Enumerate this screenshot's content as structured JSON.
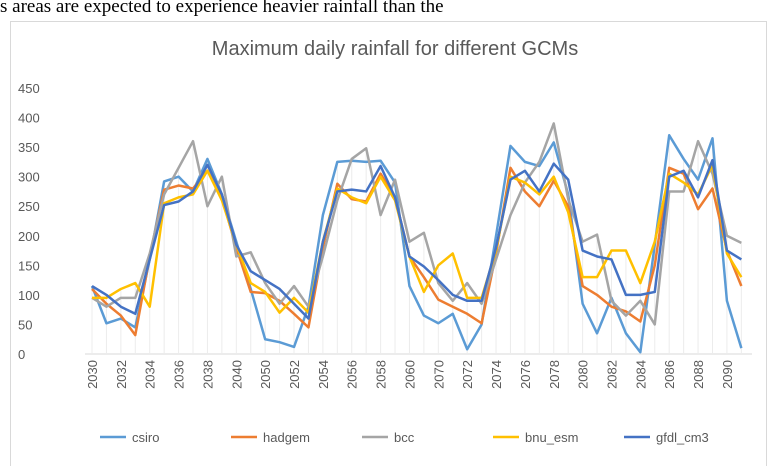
{
  "page_text": "s areas are expected to experience heavier rainfall than the",
  "chart_data": {
    "type": "line",
    "title": "Maximum daily rainfall for different GCMs",
    "categories": [
      "2030",
      null,
      "2032",
      null,
      "2034",
      null,
      "2036",
      null,
      "2038",
      null,
      "2040",
      null,
      "2050",
      null,
      "2052",
      null,
      "2054",
      null,
      "2056",
      null,
      "2058",
      null,
      "2060",
      null,
      "2070",
      null,
      "2072",
      null,
      "2074",
      null,
      "2076",
      null,
      "2078",
      null,
      "2080",
      null,
      "2082",
      null,
      "2084",
      null,
      "2086",
      null,
      "2088",
      null,
      "2090",
      null
    ],
    "ylim": [
      0,
      450
    ],
    "yticks": [
      0,
      50,
      100,
      150,
      200,
      250,
      300,
      350,
      400,
      450
    ],
    "grid": false,
    "legend": "bottom",
    "series": [
      {
        "name": "csiro",
        "color": "#5b9bd5",
        "values": [
          115,
          52,
          60,
          45,
          160,
          292,
          300,
          275,
          330,
          270,
          190,
          110,
          25,
          20,
          12,
          80,
          235,
          325,
          327,
          325,
          327,
          290,
          115,
          65,
          52,
          68,
          8,
          50,
          200,
          352,
          325,
          318,
          358,
          270,
          85,
          35,
          95,
          35,
          3,
          185,
          370,
          330,
          295,
          365,
          90,
          10
        ]
      },
      {
        "name": "hadgem",
        "color": "#ed7d31",
        "values": [
          110,
          85,
          65,
          32,
          165,
          278,
          285,
          280,
          310,
          265,
          180,
          105,
          103,
          90,
          68,
          45,
          180,
          288,
          262,
          258,
          305,
          265,
          165,
          130,
          92,
          80,
          68,
          52,
          170,
          315,
          275,
          250,
          293,
          250,
          115,
          100,
          80,
          72,
          55,
          150,
          315,
          305,
          245,
          280,
          175,
          115
        ]
      },
      {
        "name": "bcc",
        "color": "#a5a5a5",
        "values": [
          95,
          80,
          95,
          95,
          170,
          270,
          315,
          360,
          250,
          300,
          165,
          172,
          120,
          85,
          115,
          80,
          165,
          260,
          330,
          348,
          235,
          295,
          190,
          205,
          120,
          90,
          120,
          85,
          160,
          235,
          290,
          325,
          390,
          262,
          190,
          202,
          90,
          65,
          90,
          50,
          275,
          275,
          360,
          305,
          200,
          188
        ]
      },
      {
        "name": "bnu_esm",
        "color": "#ffc000",
        "values": [
          95,
          95,
          110,
          120,
          80,
          255,
          265,
          270,
          310,
          260,
          185,
          120,
          105,
          70,
          95,
          70,
          190,
          280,
          265,
          255,
          300,
          260,
          165,
          105,
          150,
          170,
          95,
          95,
          175,
          300,
          290,
          270,
          300,
          240,
          130,
          130,
          175,
          175,
          120,
          190,
          305,
          290,
          270,
          320,
          170,
          130
        ]
      },
      {
        "name": "gfdl_cm3",
        "color": "#4472c4",
        "values": [
          115,
          100,
          80,
          68,
          160,
          252,
          258,
          275,
          320,
          270,
          185,
          140,
          125,
          110,
          85,
          60,
          190,
          275,
          278,
          275,
          318,
          265,
          165,
          148,
          125,
          100,
          90,
          90,
          180,
          295,
          310,
          275,
          322,
          295,
          175,
          165,
          160,
          100,
          100,
          105,
          300,
          310,
          265,
          328,
          175,
          160
        ]
      }
    ]
  }
}
